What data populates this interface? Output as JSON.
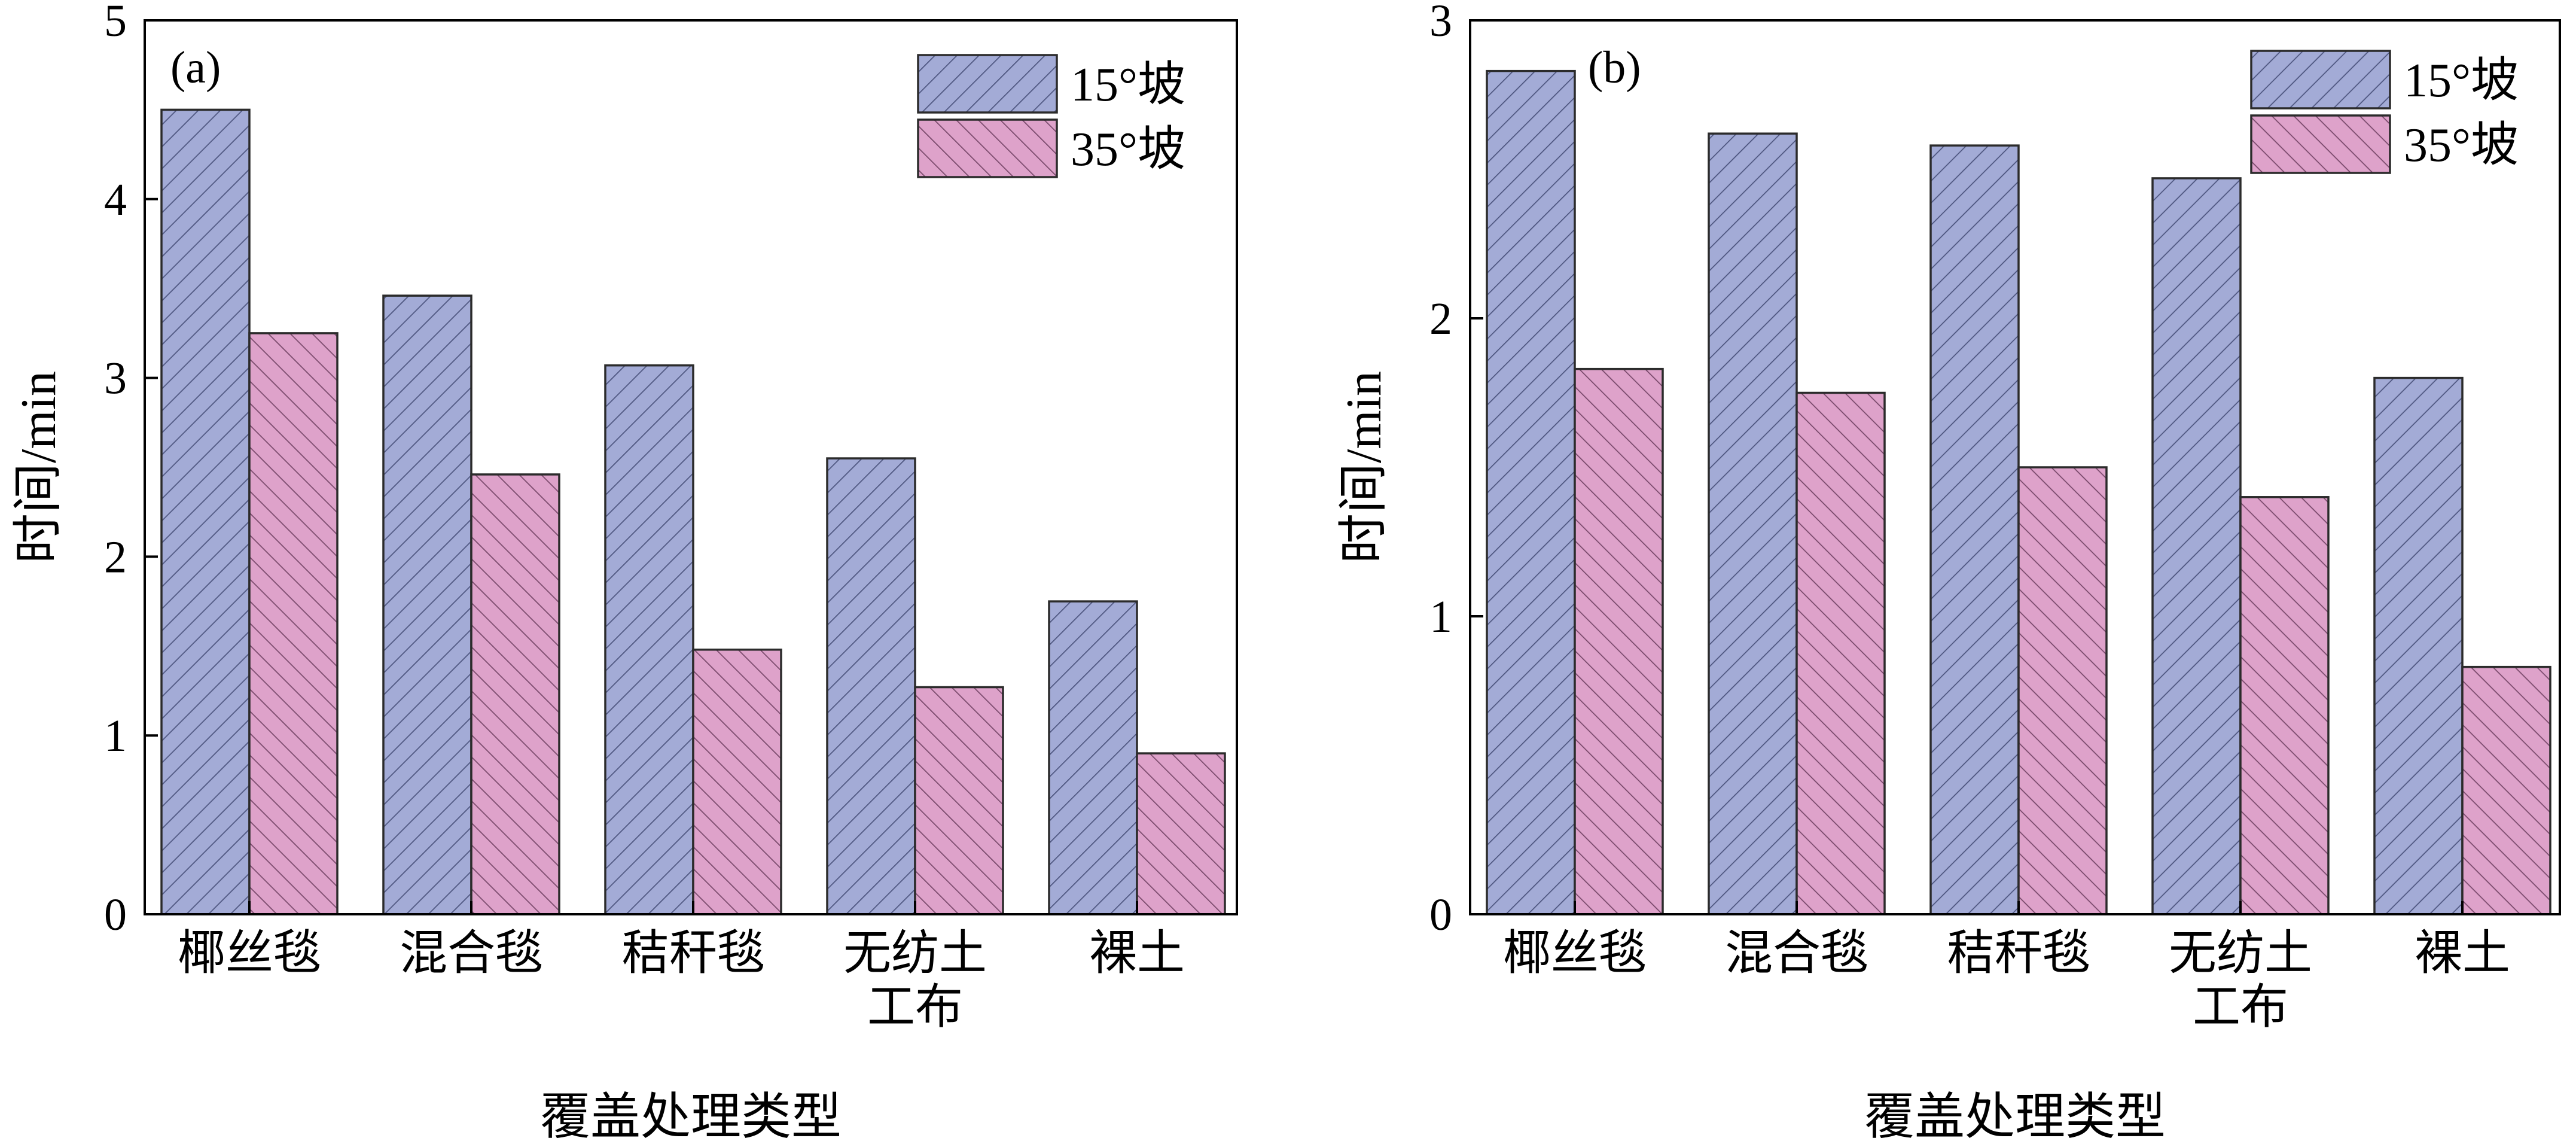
{
  "chart_data": [
    {
      "type": "bar",
      "panel_label": "(a)",
      "categories": [
        [
          "椰丝毯"
        ],
        [
          "混合毯"
        ],
        [
          "秸秆毯"
        ],
        [
          "无纺土",
          "工布"
        ],
        [
          "裸土"
        ]
      ],
      "series": [
        {
          "name": "15°坡",
          "values": [
            4.5,
            3.46,
            3.07,
            2.55,
            1.75
          ]
        },
        {
          "name": "35°坡",
          "values": [
            3.25,
            2.46,
            1.48,
            1.27,
            0.9
          ]
        }
      ],
      "xlabel": "覆盖处理类型",
      "ylabel": "时间/min",
      "ylim": [
        0,
        5
      ],
      "yticks": [
        "0",
        "1",
        "2",
        "3",
        "4",
        "5"
      ],
      "legend_position": "top-right",
      "grid": false
    },
    {
      "type": "bar",
      "panel_label": "(b)",
      "categories": [
        [
          "椰丝毯"
        ],
        [
          "混合毯"
        ],
        [
          "秸秆毯"
        ],
        [
          "无纺土",
          "工布"
        ],
        [
          "裸土"
        ]
      ],
      "series": [
        {
          "name": "15°坡",
          "values": [
            2.83,
            2.62,
            2.58,
            2.47,
            1.8
          ]
        },
        {
          "name": "35°坡",
          "values": [
            1.83,
            1.75,
            1.5,
            1.4,
            0.83
          ]
        }
      ],
      "xlabel": "覆盖处理类型",
      "ylabel": "时间/min",
      "ylim": [
        0,
        3
      ],
      "yticks": [
        "0",
        "1",
        "2",
        "3"
      ],
      "legend_position": "top-right",
      "grid": false
    }
  ],
  "colors": {
    "series_fill": [
      "#a3abd6",
      "#dea2ca"
    ],
    "series_hatch": [
      "#4e5680",
      "#7a4a6c"
    ],
    "bar_stroke": "#2b2b2b",
    "axis": "#000000"
  }
}
